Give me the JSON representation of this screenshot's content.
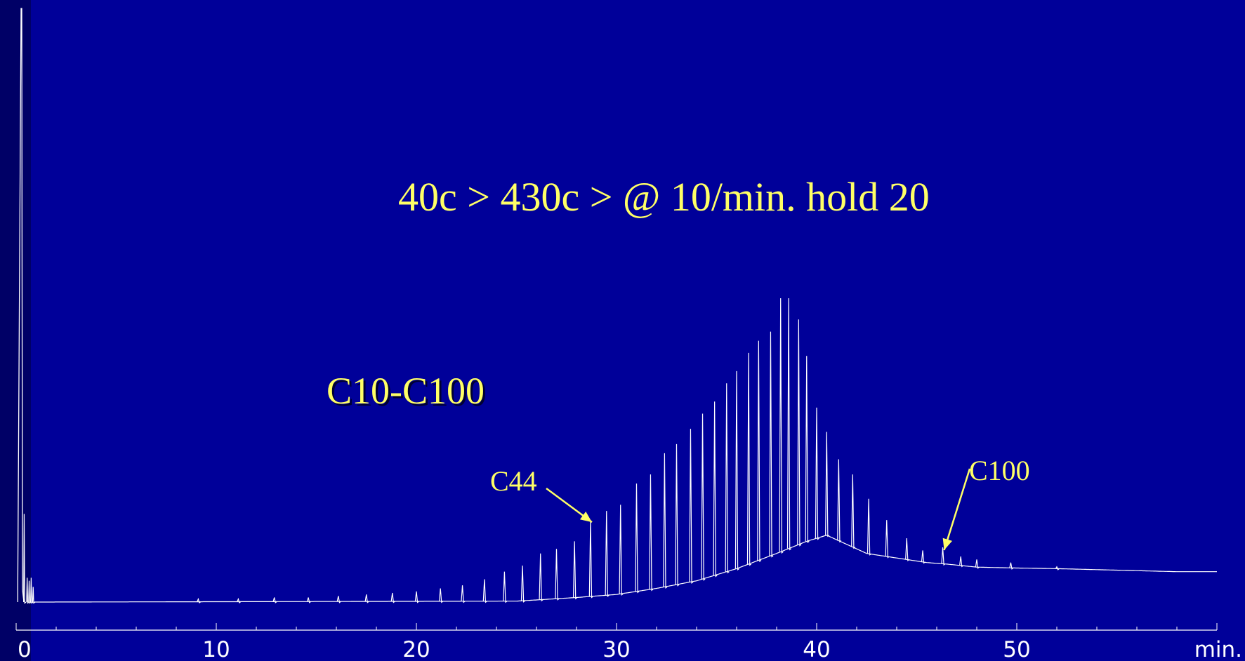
{
  "colors": {
    "background": "#000099",
    "left_band": "#000066",
    "trace": "#ffffff",
    "annotation": "#ffff66"
  },
  "annotations": {
    "conditions": "40c > 430c > @ 10/min. hold 20",
    "range": "C10-C100",
    "c44": "C44",
    "c100": "C100"
  },
  "chart_data": {
    "type": "line",
    "title": "",
    "xlabel": "min.",
    "ylabel": "",
    "xlim": [
      0,
      60
    ],
    "ylim": [
      0,
      100
    ],
    "x_ticks": [
      0,
      10,
      20,
      30,
      40,
      50
    ],
    "x_tick_labels": [
      "0",
      "10",
      "20",
      "30",
      "40",
      "50"
    ],
    "x_unit_label": "min.",
    "grid": false,
    "legend": "none",
    "solvent_peak": {
      "x": 0.15,
      "y": 100
    },
    "baseline": [
      [
        0,
        0
      ],
      [
        1,
        0
      ],
      [
        25,
        0.3
      ],
      [
        28,
        1.5
      ],
      [
        30,
        2.5
      ],
      [
        32,
        4.5
      ],
      [
        34,
        7
      ],
      [
        36,
        11
      ],
      [
        38,
        16
      ],
      [
        39.5,
        20
      ],
      [
        40.5,
        22
      ],
      [
        41.5,
        19
      ],
      [
        42.5,
        16
      ],
      [
        43.5,
        15
      ],
      [
        44.5,
        14
      ],
      [
        45.5,
        13
      ],
      [
        46.5,
        12.5
      ],
      [
        48,
        11.5
      ],
      [
        50,
        11.2
      ],
      [
        52,
        11
      ],
      [
        55,
        10.5
      ],
      [
        58,
        10
      ],
      [
        60,
        10
      ]
    ],
    "peaks": [
      {
        "x": 0.4,
        "y": 29
      },
      {
        "x": 0.55,
        "y": 8
      },
      {
        "x": 0.65,
        "y": 7
      },
      {
        "x": 0.75,
        "y": 8
      },
      {
        "x": 0.85,
        "y": 5
      },
      {
        "x": 9.1,
        "y": 1
      },
      {
        "x": 11.1,
        "y": 1
      },
      {
        "x": 12.9,
        "y": 1.5
      },
      {
        "x": 14.6,
        "y": 1.5
      },
      {
        "x": 16.1,
        "y": 2
      },
      {
        "x": 17.5,
        "y": 2.5
      },
      {
        "x": 18.8,
        "y": 3
      },
      {
        "x": 20.0,
        "y": 3.5
      },
      {
        "x": 21.2,
        "y": 4.5
      },
      {
        "x": 22.3,
        "y": 5.5
      },
      {
        "x": 23.4,
        "y": 7.5
      },
      {
        "x": 24.4,
        "y": 10
      },
      {
        "x": 25.3,
        "y": 12
      },
      {
        "x": 26.2,
        "y": 16
      },
      {
        "x": 27.0,
        "y": 17.5
      },
      {
        "x": 27.9,
        "y": 20
      },
      {
        "x": 28.7,
        "y": 27
      },
      {
        "x": 29.5,
        "y": 30
      },
      {
        "x": 30.2,
        "y": 32
      },
      {
        "x": 31.0,
        "y": 39
      },
      {
        "x": 31.7,
        "y": 42
      },
      {
        "x": 32.4,
        "y": 49
      },
      {
        "x": 33.0,
        "y": 52
      },
      {
        "x": 33.7,
        "y": 57
      },
      {
        "x": 34.3,
        "y": 62
      },
      {
        "x": 34.9,
        "y": 66
      },
      {
        "x": 35.5,
        "y": 72
      },
      {
        "x": 36.0,
        "y": 76
      },
      {
        "x": 36.6,
        "y": 82
      },
      {
        "x": 37.1,
        "y": 86
      },
      {
        "x": 37.7,
        "y": 89
      },
      {
        "x": 38.2,
        "y": 100
      },
      {
        "x": 38.6,
        "y": 100
      },
      {
        "x": 39.1,
        "y": 93
      },
      {
        "x": 39.5,
        "y": 81
      },
      {
        "x": 40.0,
        "y": 64
      },
      {
        "x": 40.5,
        "y": 56
      },
      {
        "x": 41.1,
        "y": 47
      },
      {
        "x": 41.8,
        "y": 42
      },
      {
        "x": 42.6,
        "y": 34
      },
      {
        "x": 43.5,
        "y": 27
      },
      {
        "x": 44.5,
        "y": 21
      },
      {
        "x": 45.3,
        "y": 17
      },
      {
        "x": 46.3,
        "y": 18
      },
      {
        "x": 47.2,
        "y": 15
      },
      {
        "x": 48.0,
        "y": 14
      },
      {
        "x": 49.7,
        "y": 13
      },
      {
        "x": 52.0,
        "y": 11.6
      }
    ],
    "labeled_peaks": [
      {
        "label": "C44",
        "x": 28.7,
        "y": 27
      },
      {
        "label": "C100",
        "x": 46.3,
        "y": 18
      }
    ]
  }
}
